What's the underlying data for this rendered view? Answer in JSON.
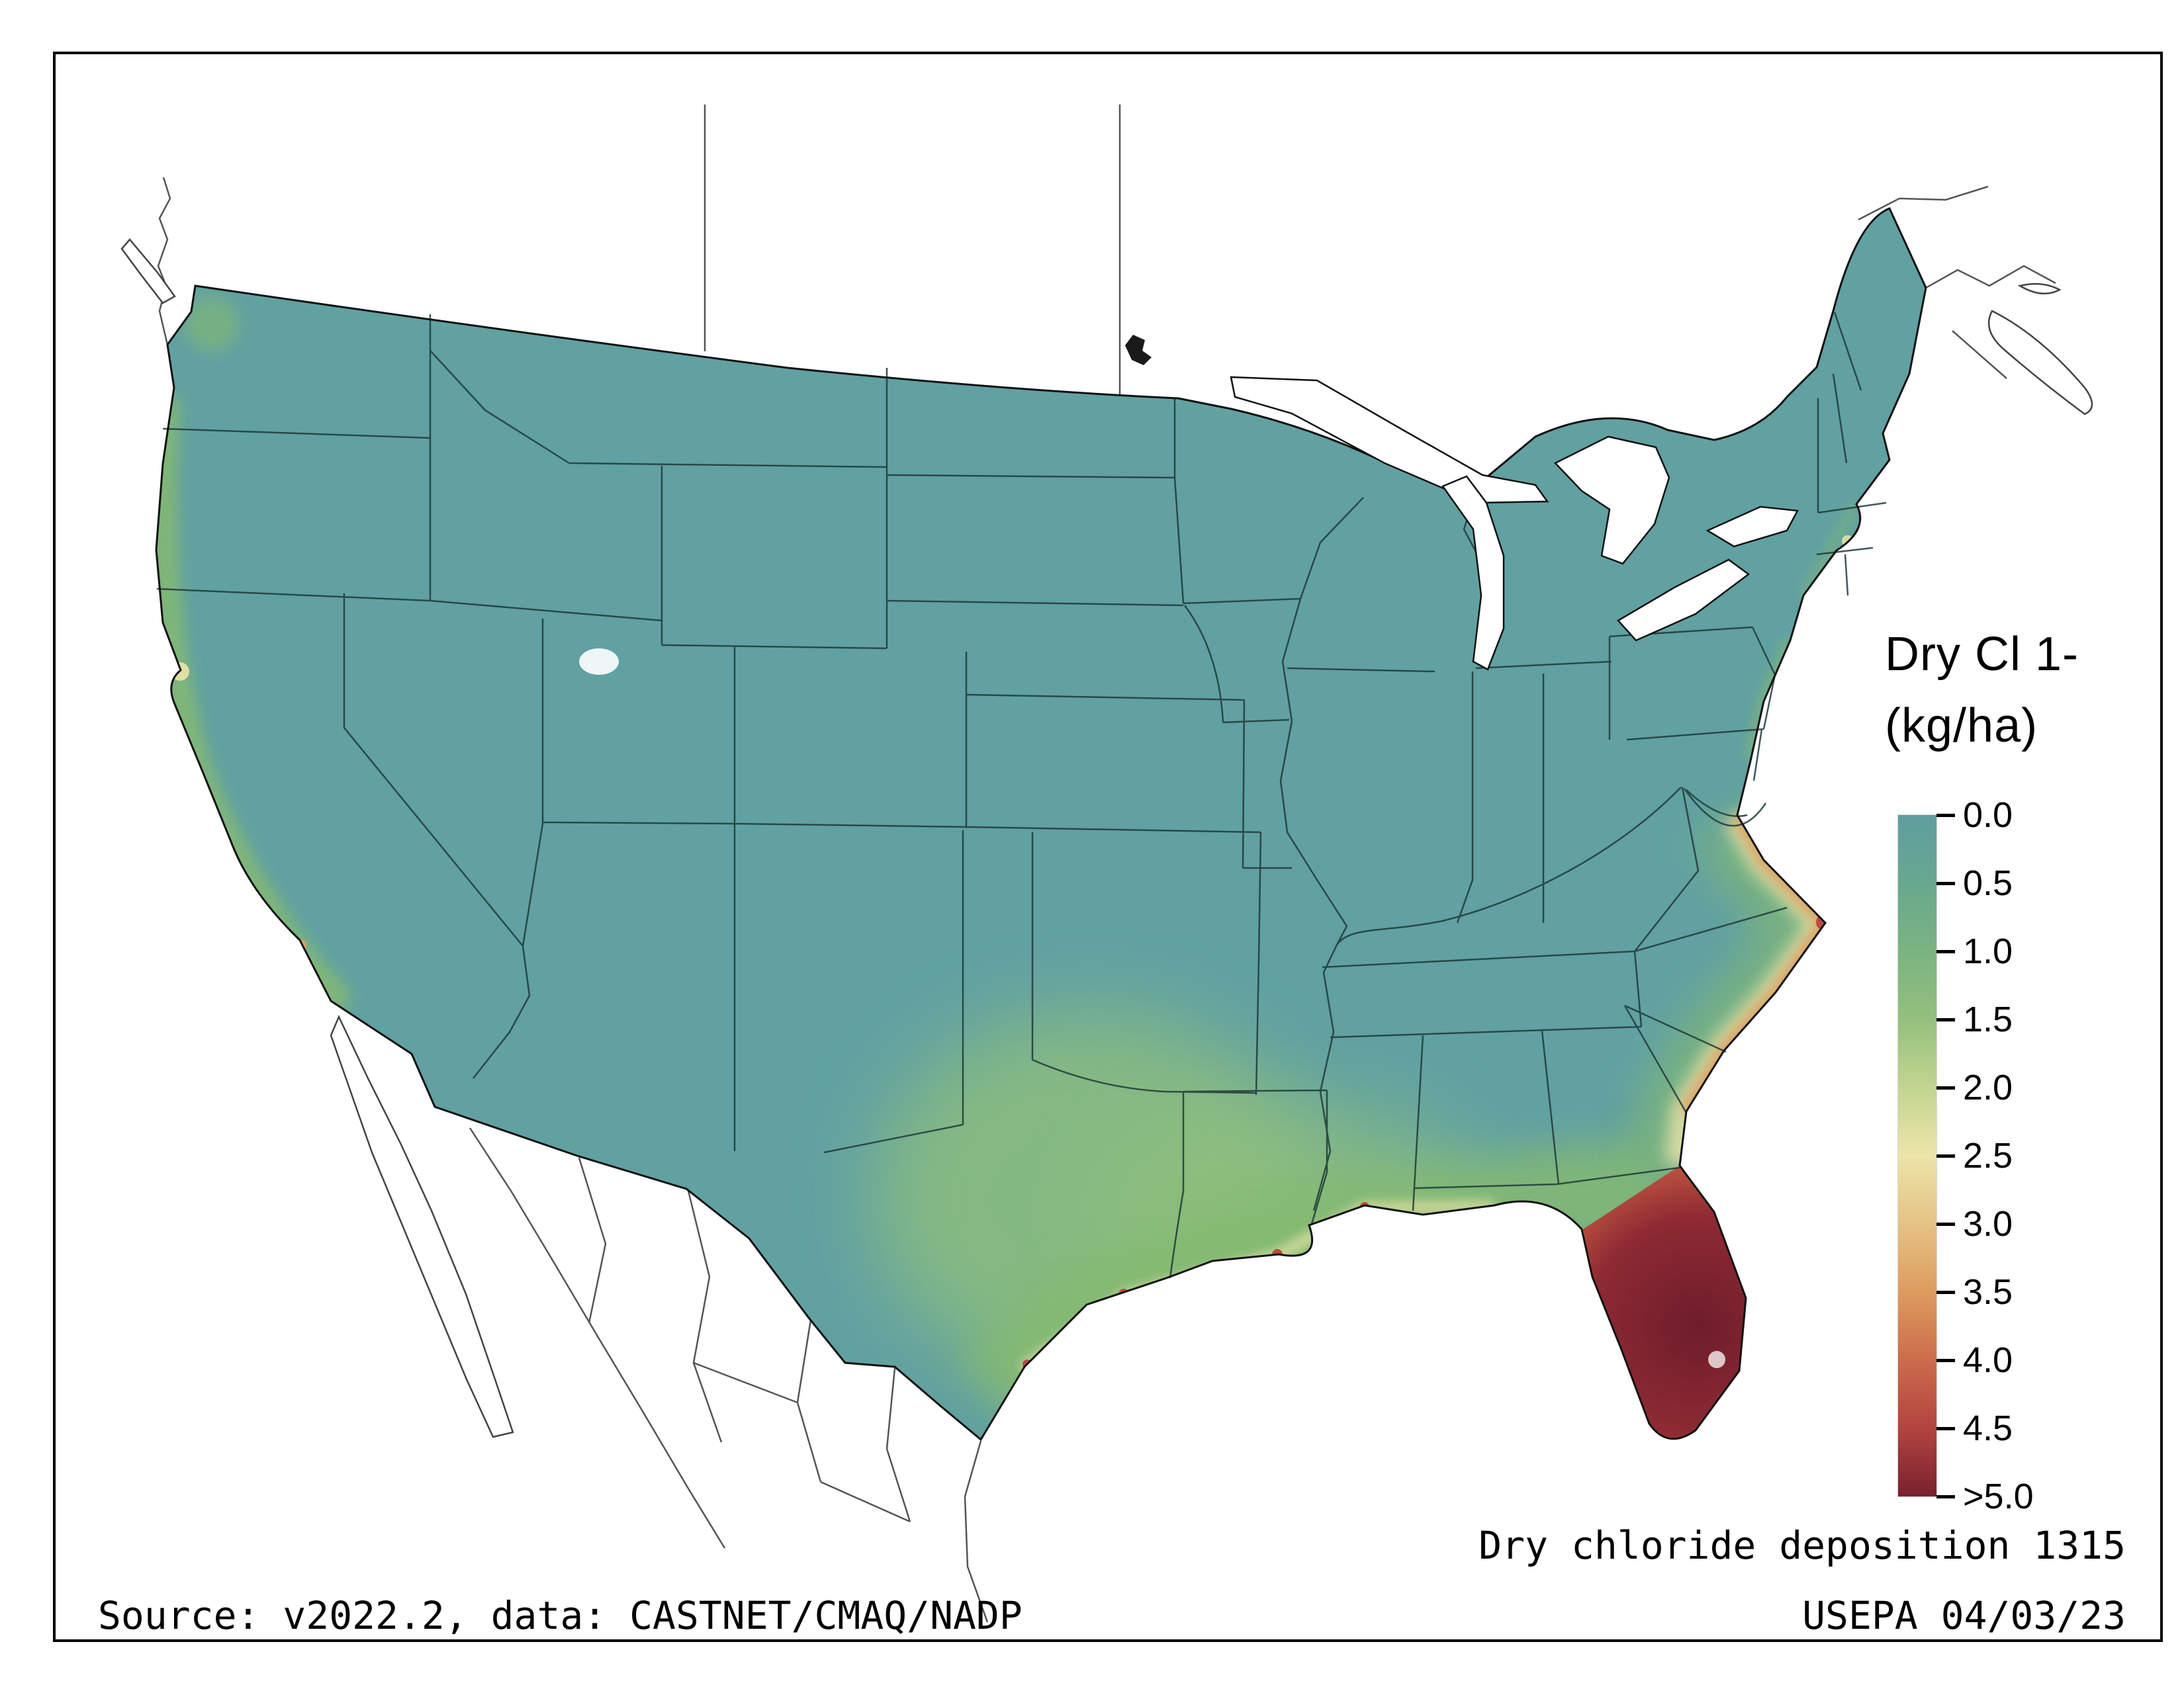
{
  "legend": {
    "title_line1": "Dry Cl 1-",
    "title_line2": "(kg/ha)",
    "tick_labels": [
      "0.0",
      "0.5",
      "1.0",
      "1.5",
      "2.0",
      "2.5",
      "3.0",
      "3.5",
      "4.0",
      "4.5",
      ">5.0"
    ],
    "gradient_stops": [
      "#5f9ea1",
      "#68a88f",
      "#7bb381",
      "#93c07d",
      "#c3d591",
      "#ece4a8",
      "#e5c285",
      "#dd9c5e",
      "#cb6c4b",
      "#b34440",
      "#77212f"
    ]
  },
  "captions": {
    "map_title": "Dry chloride deposition 1315",
    "source": "Source: v2022.2, data: CASTNET/CMAQ/NADP",
    "agency_date": "USEPA 04/03/23"
  },
  "map_colors": {
    "base": "#61a1a2",
    "coastal_green": "#84ba71",
    "inland_green": "#8fc07b",
    "pale_yellow": "#ece4a8",
    "orange": "#dd9c5e",
    "red": "#bb4a41",
    "maroon": "#77212f",
    "water": "#ffffff",
    "florida": {
      "core": "#6e1d2c",
      "mid": "#8e2a33",
      "ring": "#b9503e",
      "edge": "#dfa05f",
      "outer": "#cccf8c"
    }
  },
  "chart_data": {
    "type": "heatmap",
    "subtype": "gridded deposition map (choropleth-style)",
    "region": "Continental United States",
    "variable": "Dry chloride (Cl 1-) deposition",
    "units": "kg/ha",
    "scale_ticks": [
      0.0,
      0.5,
      1.0,
      1.5,
      2.0,
      2.5,
      3.0,
      3.5,
      4.0,
      4.5,
      5.0
    ],
    "scale_max_label": ">5.0",
    "legend_position": "right",
    "colormap": [
      "#5f9ea1",
      "#68a88f",
      "#7bb381",
      "#93c07d",
      "#c3d591",
      "#ece4a8",
      "#e5c285",
      "#dd9c5e",
      "#cb6c4b",
      "#b34440",
      "#77212f"
    ],
    "observations": [
      {
        "area": "Interior and western United States (most of map)",
        "approx_value_kg_ha": "0.0-0.5"
      },
      {
        "area": "Pacific coastal fringe (WA, OR, CA coast)",
        "approx_value_kg_ha": "1.0-2.0"
      },
      {
        "area": "Central and coastal Texas, Gulf coastal plain (LA, MS, AL)",
        "approx_value_kg_ha": "1.0-2.0"
      },
      {
        "area": "Gulf coast shoreline spots (Corpus Christi, Galveston, New Orleans, Mobile)",
        "approx_value_kg_ha": "3.0-4.5"
      },
      {
        "area": "Southeast Atlantic coastal fringe (GA, SC, NC Outer Banks)",
        "approx_value_kg_ha": "2.0-4.5"
      },
      {
        "area": "Florida peninsula",
        "approx_value_kg_ha": ">5.0"
      }
    ]
  }
}
